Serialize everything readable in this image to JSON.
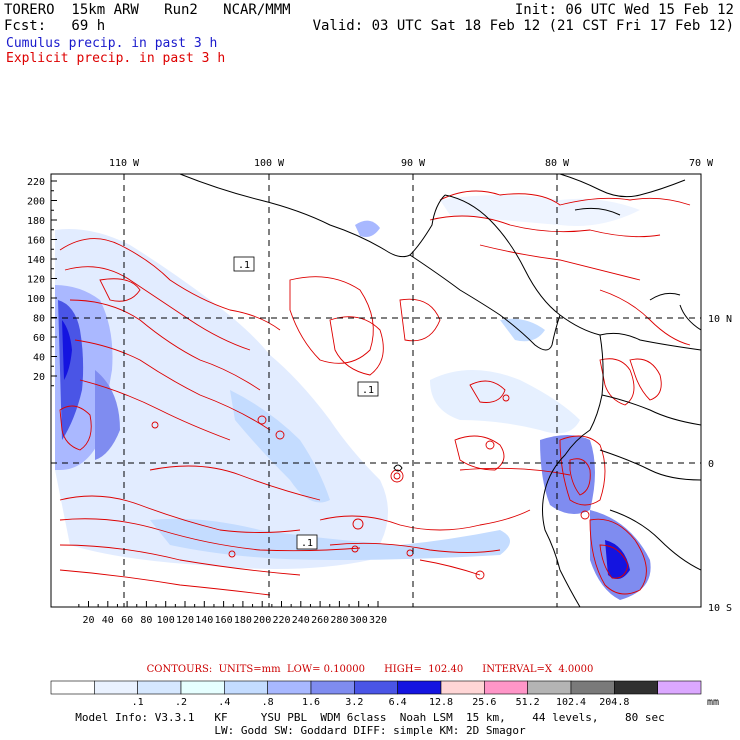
{
  "header": {
    "line1_left": "TORERO  15km ARW   Run2   NCAR/MMM",
    "line1_right": "Init: 06 UTC Wed 15 Feb 12",
    "line2_left": "Fcst:   69 h",
    "line2_right": "Valid: 03 UTC Sat 18 Feb 12 (21 CST Fri 17 Feb 12)",
    "legend_cumulus": "Cumulus precip. in past 3 h",
    "legend_explicit": "Explicit precip. in past 3 h",
    "cumulus_color": "#1a1acc",
    "explicit_color": "#dd0000"
  },
  "map": {
    "y_ticks": [
      "220",
      "200",
      "180",
      "160",
      "140",
      "120",
      "100",
      "80",
      "60",
      "40",
      "20"
    ],
    "x_ticks": [
      "20",
      "40",
      "60",
      "80",
      "100",
      "120",
      "140",
      "160",
      "180",
      "200",
      "220",
      "240",
      "260",
      "280",
      "300",
      "320"
    ],
    "lon_labels": [
      "110 W",
      "100 W",
      "90 W",
      "80 W",
      "70 W"
    ],
    "lat_labels": [
      "10 N",
      "0",
      "10 S"
    ],
    "contour_boxes": [
      ".1",
      ".1",
      ".1"
    ],
    "land_color": "#000000",
    "contour_color": "#dd0000"
  },
  "contour_info": "CONTOURS:  UNITS=mm  LOW= 0.10000      HIGH=  102.40      INTERVAL=X  4.0000",
  "colorbar": {
    "colors": [
      "#ffffff",
      "#eaf2ff",
      "#d6e8ff",
      "#e6ffff",
      "#c4dcff",
      "#a8b8ff",
      "#7f8cf0",
      "#4a55e6",
      "#1414e0",
      "#ffd6d6",
      "#ff96c8",
      "#b4b4b4",
      "#7a7a7a",
      "#303030",
      "#dba8ff"
    ],
    "labels": [
      ".1",
      ".2",
      ".4",
      ".8",
      "1.6",
      "3.2",
      "6.4",
      "12.8",
      "25.6",
      "51.2",
      "102.4",
      "204.8"
    ],
    "unit": "mm"
  },
  "model_info": {
    "line1": "Model Info: V3.3.1   KF     YSU PBL  WDM 6class  Noah LSM  15 km,    44 levels,    80 sec",
    "line2": "LW: Godd SW: Goddard DIFF: simple KM: 2D Smagor"
  }
}
